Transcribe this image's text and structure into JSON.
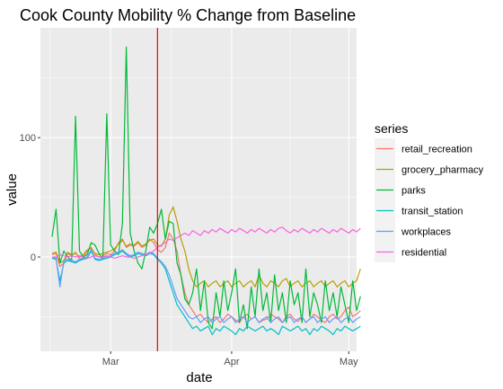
{
  "chart_data": {
    "type": "line",
    "title": "Cook County Mobility % Change from Baseline",
    "xlabel": "date",
    "ylabel": "value",
    "x_start": "2020-02-15",
    "x_ticks": [
      {
        "date": "2020-03-01",
        "label": "Mar"
      },
      {
        "date": "2020-04-01",
        "label": "Apr"
      },
      {
        "date": "2020-05-01",
        "label": "May"
      }
    ],
    "xlim": [
      "2020-02-12",
      "2020-05-03"
    ],
    "y_ticks": [
      {
        "value": 0,
        "label": "0"
      },
      {
        "value": 100,
        "label": "100"
      }
    ],
    "ylim": [
      -79,
      192
    ],
    "grid": true,
    "vline": {
      "date": "2020-03-13",
      "color": "#ff0000"
    },
    "legend": {
      "title": "series",
      "placement": "right"
    },
    "series": [
      {
        "name": "retail_recreation",
        "color": "#f8766d",
        "values": [
          2,
          3,
          -8,
          -5,
          3,
          1,
          4,
          -2,
          0,
          5,
          8,
          2,
          0,
          1,
          3,
          2,
          5,
          12,
          15,
          8,
          10,
          9,
          12,
          8,
          10,
          15,
          12,
          6,
          4,
          8,
          20,
          15,
          5,
          -15,
          -30,
          -40,
          -45,
          -50,
          -48,
          -52,
          -55,
          -52,
          -50,
          -55,
          -52,
          -48,
          -50,
          -53,
          -55,
          -50,
          -48,
          -52,
          -50,
          -55,
          -53,
          -52,
          -48,
          -50,
          -52,
          -55,
          -50,
          -48,
          -52,
          -54,
          -50,
          -55,
          -52,
          -48,
          -50,
          -53,
          -55,
          -50,
          -48,
          -52,
          -50,
          -45,
          -42,
          -50,
          -48,
          -45
        ]
      },
      {
        "name": "grocery_pharmacy",
        "color": "#b79f00",
        "values": [
          3,
          4,
          -5,
          -3,
          4,
          2,
          3,
          0,
          2,
          6,
          7,
          3,
          2,
          3,
          4,
          5,
          7,
          11,
          14,
          9,
          11,
          10,
          13,
          9,
          11,
          14,
          15,
          10,
          9,
          15,
          35,
          42,
          30,
          15,
          5,
          -10,
          -20,
          -25,
          -22,
          -20,
          -25,
          -22,
          -20,
          -25,
          -22,
          -20,
          -25,
          -22,
          -20,
          -25,
          -22,
          -20,
          -25,
          -15,
          -22,
          -25,
          -20,
          -22,
          -25,
          -20,
          -18,
          -25,
          -22,
          -20,
          -25,
          -22,
          -20,
          -25,
          -22,
          -20,
          -25,
          -22,
          -20,
          -25,
          -22,
          -20,
          -25,
          -22,
          -20,
          -10
        ]
      },
      {
        "name": "parks",
        "color": "#00ba38",
        "values": [
          17,
          40,
          -5,
          5,
          0,
          -3,
          118,
          5,
          0,
          2,
          12,
          10,
          3,
          -2,
          120,
          10,
          5,
          2,
          28,
          176,
          20,
          5,
          -5,
          -10,
          5,
          25,
          20,
          28,
          40,
          15,
          30,
          28,
          -5,
          -15,
          -35,
          -40,
          -30,
          -10,
          -45,
          -20,
          -55,
          -60,
          -30,
          -50,
          -20,
          -45,
          -30,
          -10,
          -55,
          -40,
          -60,
          -25,
          -50,
          -10,
          -45,
          -30,
          -55,
          -15,
          -45,
          -30,
          -55,
          -20,
          -40,
          -30,
          -55,
          -10,
          -50,
          -30,
          -40,
          -55,
          -20,
          -45,
          -30,
          -50,
          -25,
          -40,
          -55,
          -20,
          -45,
          -33
        ]
      },
      {
        "name": "transit_station",
        "color": "#00bfc4",
        "values": [
          -1,
          -2,
          -20,
          -5,
          -3,
          -4,
          -5,
          -3,
          -2,
          -1,
          5,
          -2,
          -3,
          -2,
          -1,
          0,
          2,
          3,
          5,
          2,
          0,
          1,
          3,
          2,
          1,
          3,
          2,
          -2,
          -5,
          -10,
          -20,
          -30,
          -40,
          -45,
          -50,
          -55,
          -60,
          -58,
          -62,
          -60,
          -58,
          -65,
          -60,
          -62,
          -58,
          -60,
          -62,
          -65,
          -60,
          -62,
          -58,
          -60,
          -62,
          -60,
          -58,
          -62,
          -60,
          -62,
          -65,
          -58,
          -60,
          -62,
          -60,
          -58,
          -62,
          -60,
          -65,
          -60,
          -62,
          -58,
          -60,
          -62,
          -65,
          -60,
          -62,
          -58,
          -60,
          -62,
          -60,
          -58
        ]
      },
      {
        "name": "workplaces",
        "color": "#619cff",
        "values": [
          0,
          -1,
          -25,
          -3,
          -2,
          -3,
          -4,
          -2,
          -1,
          0,
          6,
          -1,
          -2,
          -1,
          0,
          1,
          3,
          4,
          6,
          3,
          1,
          2,
          4,
          3,
          2,
          4,
          3,
          -1,
          -4,
          -8,
          -15,
          -25,
          -35,
          -40,
          -45,
          -50,
          -52,
          -50,
          -55,
          -52,
          -50,
          -55,
          -52,
          -50,
          -55,
          -52,
          -50,
          -55,
          -52,
          -50,
          -55,
          -52,
          -50,
          -55,
          -52,
          -50,
          -55,
          -52,
          -50,
          -55,
          -52,
          -50,
          -55,
          -52,
          -50,
          -55,
          -52,
          -50,
          -55,
          -52,
          -50,
          -55,
          -52,
          -50,
          -55,
          -52,
          -50,
          -55,
          -52,
          -50
        ]
      },
      {
        "name": "residential",
        "color": "#f564e3",
        "values": [
          0,
          0,
          2,
          1,
          0,
          1,
          0,
          1,
          0,
          -1,
          0,
          1,
          0,
          0,
          1,
          0,
          -1,
          0,
          1,
          0,
          0,
          -1,
          0,
          1,
          2,
          3,
          5,
          8,
          10,
          12,
          15,
          14,
          16,
          18,
          20,
          18,
          22,
          20,
          18,
          22,
          20,
          23,
          21,
          24,
          22,
          20,
          23,
          21,
          24,
          22,
          20,
          23,
          21,
          24,
          22,
          20,
          23,
          21,
          24,
          25,
          22,
          20,
          23,
          21,
          24,
          22,
          20,
          23,
          21,
          24,
          22,
          20,
          23,
          21,
          24,
          22,
          20,
          23,
          21,
          24
        ]
      }
    ]
  }
}
